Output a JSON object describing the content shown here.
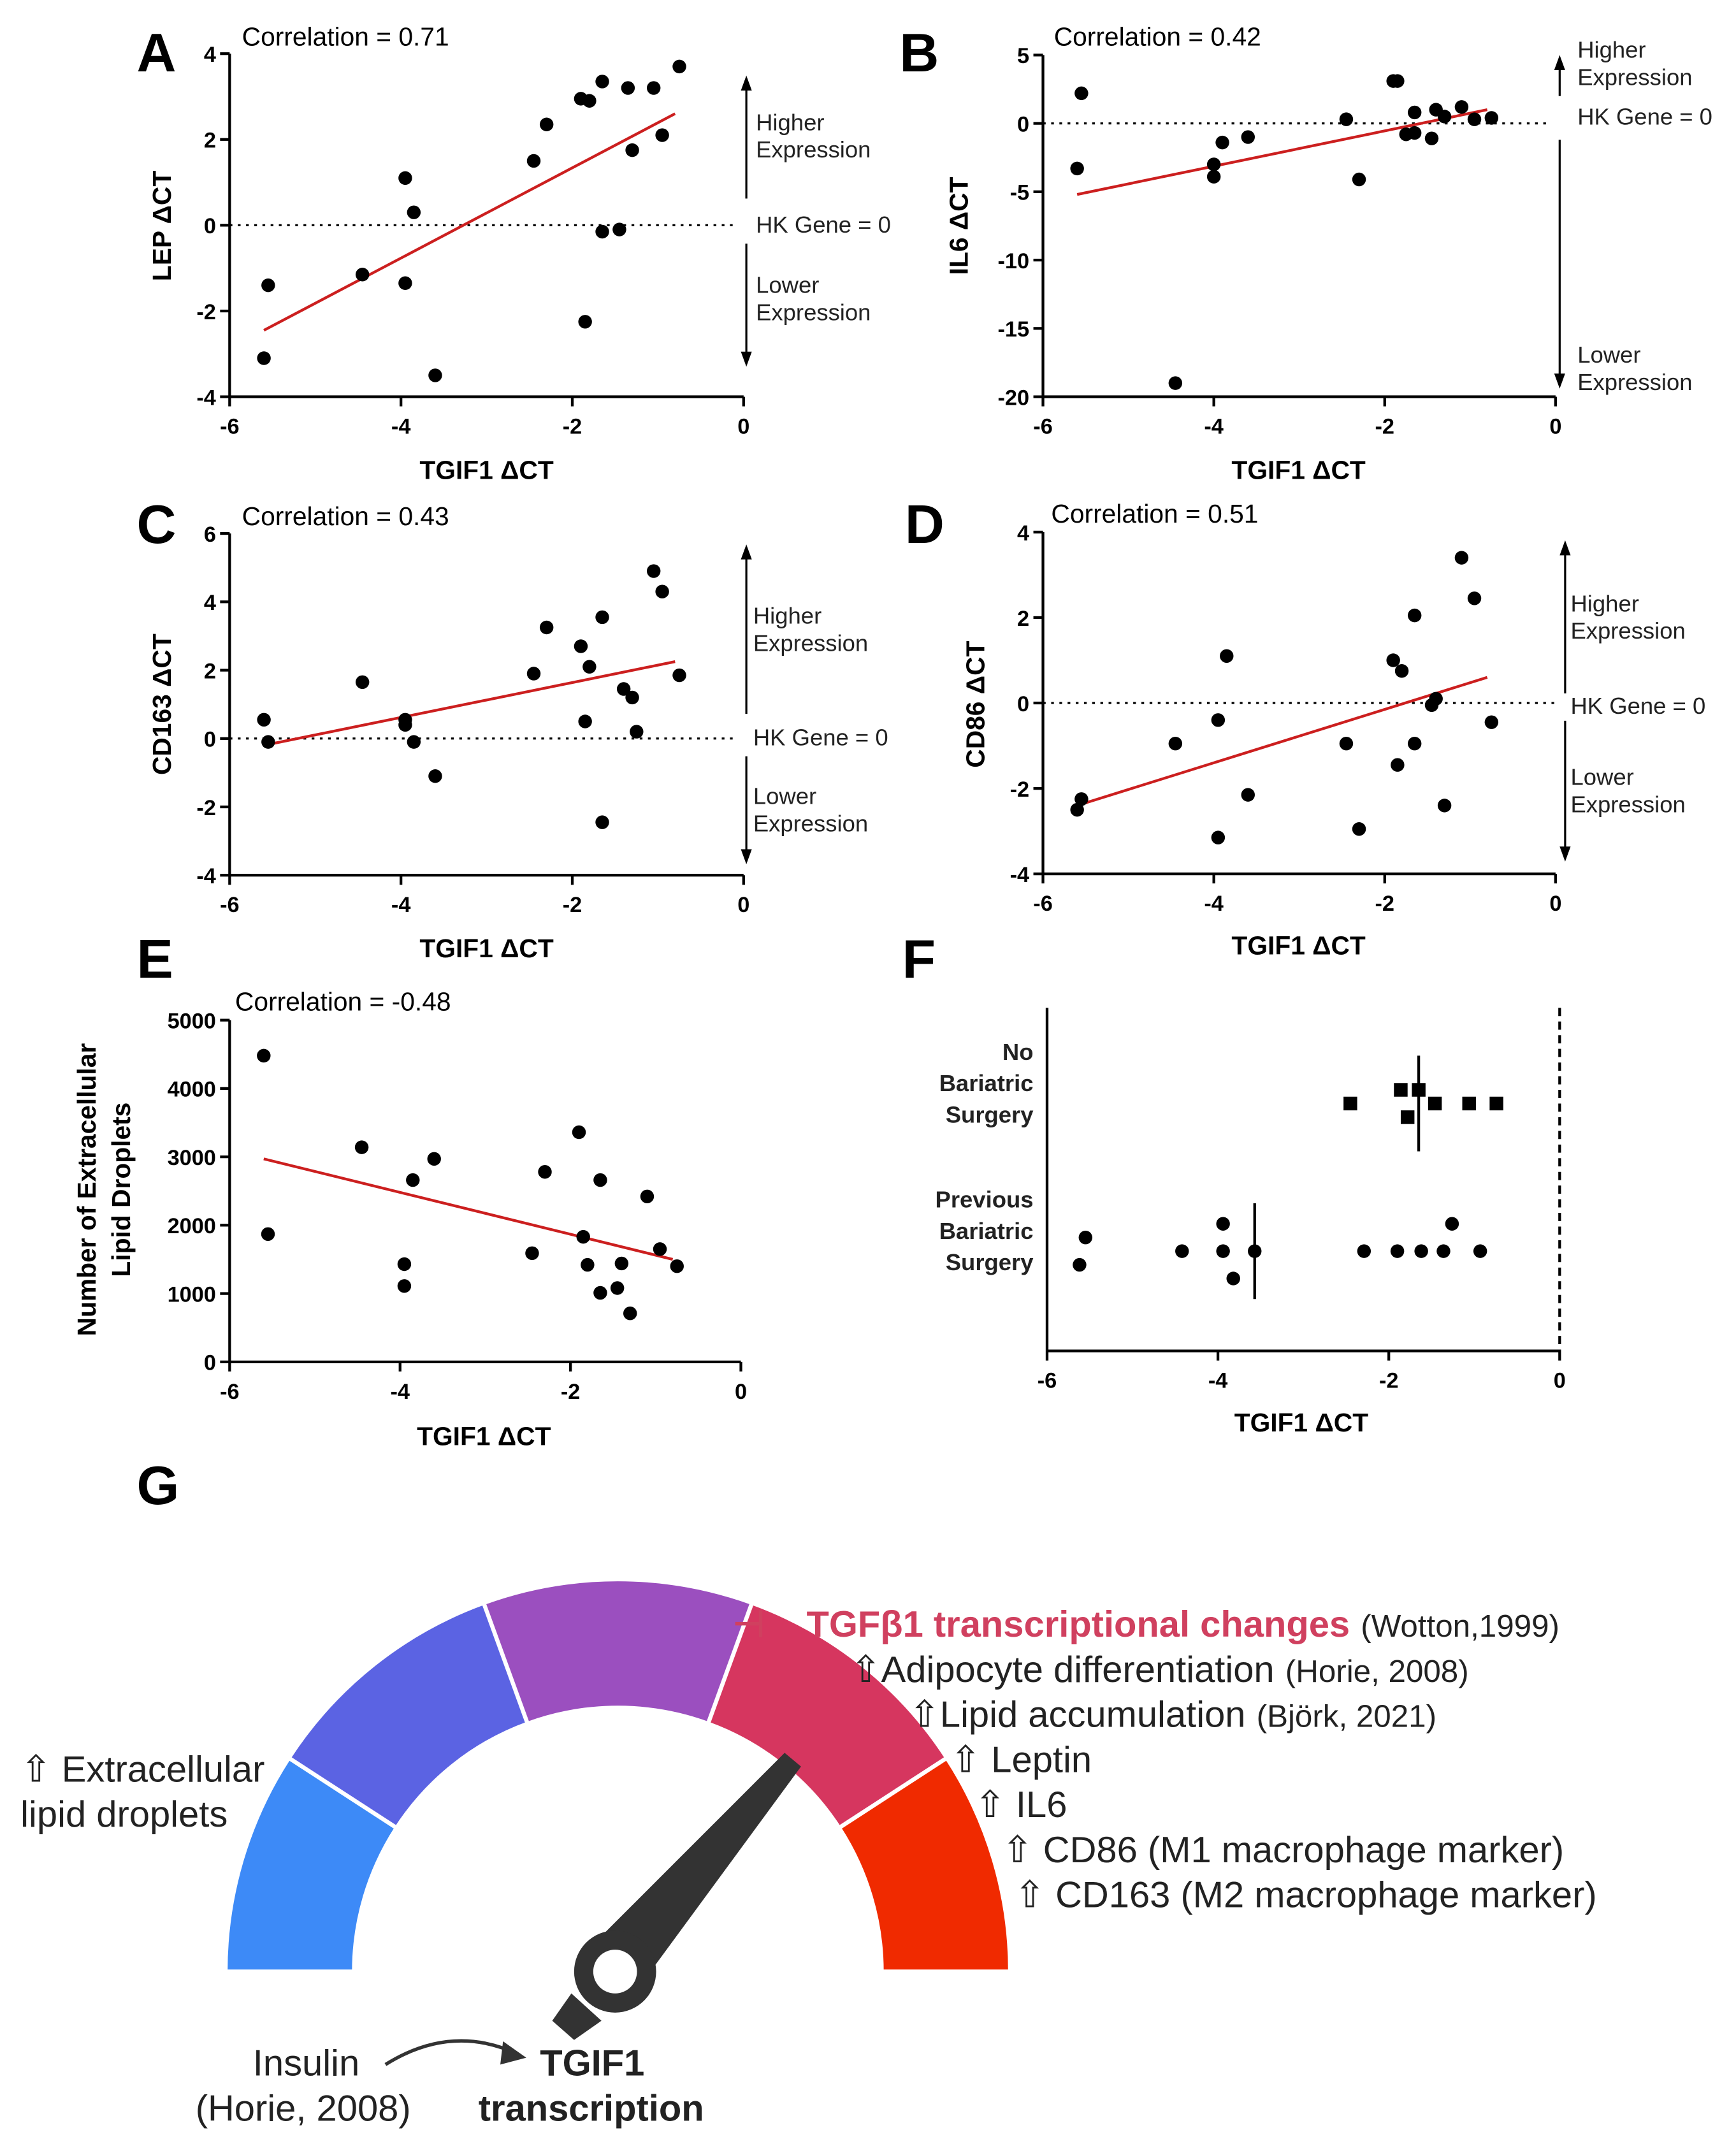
{
  "chart_data": [
    {
      "id": "A",
      "type": "scatter",
      "panel_label": "A",
      "title": "Correlation = 0.71",
      "xlabel": "TGIF1 ΔCT",
      "ylabel": "LEP ΔCT",
      "xlim": [
        -6,
        0
      ],
      "ylim": [
        -4,
        4
      ],
      "xticks": [
        -6,
        -4,
        -2,
        0
      ],
      "yticks": [
        -4,
        -2,
        0,
        2,
        4
      ],
      "x": [
        -5.6,
        -5.55,
        -4.45,
        -3.95,
        -3.95,
        -3.85,
        -3.6,
        -2.45,
        -2.3,
        -1.9,
        -1.85,
        -1.8,
        -1.65,
        -1.65,
        -1.45,
        -1.35,
        -1.3,
        -1.05,
        -0.95,
        -0.75
      ],
      "y": [
        -3.1,
        -1.4,
        -1.15,
        1.1,
        -1.35,
        0.3,
        -3.5,
        1.5,
        2.35,
        2.95,
        -2.25,
        2.9,
        3.35,
        -0.15,
        -0.1,
        3.2,
        1.75,
        3.2,
        2.1,
        3.7
      ],
      "fit": {
        "x": [
          -5.6,
          -0.8
        ],
        "y": [
          -2.45,
          2.6
        ]
      },
      "annotations": {
        "higher": [
          "Higher",
          "Expression"
        ],
        "hk": "HK Gene = 0",
        "lower": [
          "Lower",
          "Expression"
        ]
      }
    },
    {
      "id": "B",
      "type": "scatter",
      "panel_label": "B",
      "title": "Correlation = 0.42",
      "xlabel": "TGIF1 ΔCT",
      "ylabel": "IL6 ΔCT",
      "xlim": [
        -6,
        0
      ],
      "ylim": [
        -20,
        5
      ],
      "xticks": [
        -6,
        -4,
        -2,
        0
      ],
      "yticks": [
        -20,
        -15,
        -10,
        -5,
        0,
        5
      ],
      "x": [
        -5.6,
        -5.55,
        -4.45,
        -4.0,
        -4.0,
        -3.9,
        -3.6,
        -2.45,
        -2.3,
        -1.9,
        -1.85,
        -1.75,
        -1.65,
        -1.65,
        -1.45,
        -1.4,
        -1.3,
        -1.1,
        -0.95,
        -0.75
      ],
      "y": [
        -3.3,
        2.2,
        -19,
        -3.0,
        -3.9,
        -1.4,
        -1.0,
        0.3,
        -4.1,
        3.1,
        3.1,
        -0.8,
        0.8,
        -0.7,
        -1.1,
        1.0,
        0.5,
        1.2,
        0.3,
        0.4
      ],
      "fit": {
        "x": [
          -5.6,
          -0.8
        ],
        "y": [
          -5.2,
          1.0
        ]
      },
      "annotations": {
        "higher": [
          "Higher",
          "Expression"
        ],
        "hk": "HK Gene = 0",
        "lower": [
          "Lower",
          "Expression"
        ]
      }
    },
    {
      "id": "C",
      "type": "scatter",
      "panel_label": "C",
      "title": "Correlation = 0.43",
      "xlabel": "TGIF1 ΔCT",
      "ylabel": "CD163 ΔCT",
      "xlim": [
        -6,
        0
      ],
      "ylim": [
        -4,
        6
      ],
      "xticks": [
        -6,
        -4,
        -2,
        0
      ],
      "yticks": [
        -4,
        -2,
        0,
        2,
        4,
        6
      ],
      "x": [
        -5.6,
        -5.55,
        -4.45,
        -3.95,
        -3.95,
        -3.85,
        -3.6,
        -2.45,
        -2.3,
        -1.9,
        -1.85,
        -1.8,
        -1.65,
        -1.65,
        -1.4,
        -1.3,
        -1.25,
        -1.05,
        -0.95,
        -0.75
      ],
      "y": [
        0.55,
        -0.1,
        1.65,
        0.55,
        0.4,
        -0.1,
        -1.1,
        1.9,
        3.25,
        2.7,
        0.5,
        2.1,
        3.55,
        -2.45,
        1.45,
        1.2,
        0.2,
        4.9,
        4.3,
        1.85
      ],
      "fit": {
        "x": [
          -5.6,
          -0.8
        ],
        "y": [
          -0.2,
          2.25
        ]
      },
      "annotations": {
        "higher": [
          "Higher",
          "Expression"
        ],
        "hk": "HK Gene = 0",
        "lower": [
          "Lower",
          "Expression"
        ]
      }
    },
    {
      "id": "D",
      "type": "scatter",
      "panel_label": "D",
      "title": "Correlation = 0.51",
      "xlabel": "TGIF1 ΔCT",
      "ylabel": "CD86 ΔCT",
      "xlim": [
        -6,
        0
      ],
      "ylim": [
        -4,
        4
      ],
      "xticks": [
        -6,
        -4,
        -2,
        0
      ],
      "yticks": [
        -4,
        -2,
        0,
        2,
        4
      ],
      "x": [
        -5.6,
        -5.55,
        -4.45,
        -3.95,
        -3.95,
        -3.85,
        -3.6,
        -2.45,
        -2.3,
        -1.9,
        -1.85,
        -1.8,
        -1.65,
        -1.65,
        -1.45,
        -1.4,
        -1.3,
        -1.1,
        -0.95,
        -0.75
      ],
      "y": [
        -2.5,
        -2.25,
        -0.95,
        -0.4,
        -3.15,
        1.1,
        -2.15,
        -0.95,
        -2.95,
        1.0,
        -1.45,
        0.75,
        2.05,
        -0.95,
        -0.05,
        0.1,
        -2.4,
        3.4,
        2.45,
        -0.45
      ],
      "fit": {
        "x": [
          -5.6,
          -0.8
        ],
        "y": [
          -2.4,
          0.6
        ]
      },
      "annotations": {
        "higher": [
          "Higher",
          "Expression"
        ],
        "hk": "HK Gene = 0",
        "lower": [
          "Lower",
          "Expression"
        ]
      }
    },
    {
      "id": "E",
      "type": "scatter",
      "panel_label": "E",
      "title": "Correlation = -0.48",
      "xlabel": "TGIF1 ΔCT",
      "ylabel": [
        "Number of Extracellular",
        "Lipid Droplets"
      ],
      "xlim": [
        -6,
        0
      ],
      "ylim": [
        0,
        5000
      ],
      "xticks": [
        -6,
        -4,
        -2,
        0
      ],
      "yticks": [
        0,
        1000,
        2000,
        3000,
        4000,
        5000
      ],
      "x": [
        -5.6,
        -5.55,
        -4.45,
        -3.95,
        -3.95,
        -3.85,
        -3.6,
        -2.45,
        -2.3,
        -1.9,
        -1.85,
        -1.8,
        -1.65,
        -1.65,
        -1.45,
        -1.4,
        -1.3,
        -1.1,
        -0.95,
        -0.75
      ],
      "y": [
        4480,
        1870,
        3140,
        1430,
        1110,
        2660,
        2970,
        1590,
        2780,
        3360,
        1830,
        1420,
        2660,
        1010,
        1080,
        1440,
        710,
        2420,
        1650,
        1400
      ],
      "fit": {
        "x": [
          -5.6,
          -0.8
        ],
        "y": [
          2970,
          1500
        ]
      }
    },
    {
      "id": "F",
      "type": "scatter",
      "panel_label": "F",
      "xlabel": "TGIF1 ΔCT",
      "xlim": [
        -6,
        0
      ],
      "xticks": [
        -6,
        -4,
        -2,
        0
      ],
      "groups": [
        {
          "name": [
            "No",
            "Bariatric",
            "Surgery"
          ],
          "marker": "square",
          "x": [
            -2.45,
            -1.86,
            -1.65,
            -1.78,
            -1.46,
            -1.06,
            -0.74
          ],
          "mean": -1.65
        },
        {
          "name": [
            "Previous",
            "Bariatric",
            "Surgery"
          ],
          "marker": "circle",
          "x": [
            -5.62,
            -5.55,
            -4.42,
            -3.94,
            -3.94,
            -3.82,
            -3.57,
            -2.29,
            -1.9,
            -1.62,
            -1.36,
            -1.26,
            -0.93
          ],
          "mean": -3.57
        }
      ]
    }
  ],
  "diagram": {
    "panel_label": "G",
    "gauge_colors": [
      "#3d8af7",
      "#5b63e3",
      "#9b4fbf",
      "#d6365f",
      "#f02a00"
    ],
    "left_label": [
      "⇧ Extracellular",
      "lipid droplets"
    ],
    "inhibit_symbol": "⊣",
    "effects": [
      {
        "text": "TGFβ1 transcriptional changes",
        "cite": "(Wotton,1999)",
        "highlight": true
      },
      {
        "text": "⇧Adipocyte differentiation",
        "cite": "(Horie, 2008)"
      },
      {
        "text": "⇧Lipid accumulation",
        "cite": "(Björk, 2021)"
      },
      {
        "text": "⇧ Leptin",
        "cite": ""
      },
      {
        "text": "⇧ IL6",
        "cite": ""
      },
      {
        "text": "⇧ CD86 (M1 macrophage marker)",
        "cite": ""
      },
      {
        "text": "⇧ CD163 (M2 macrophage marker)",
        "cite": ""
      }
    ],
    "insulin": [
      "Insulin",
      "(Horie, 2008)"
    ],
    "tgif1": [
      "TGIF1",
      "transcription"
    ]
  }
}
